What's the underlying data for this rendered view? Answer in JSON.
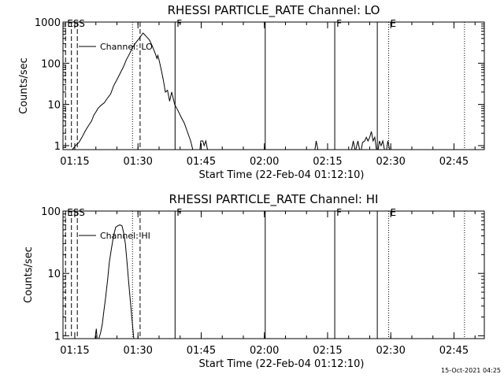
{
  "footer": {
    "timestamp": "15-Oct-2021 04:25"
  },
  "chart_data": [
    {
      "type": "line",
      "title": "RHESSI PARTICLE_RATE Channel: LO",
      "xlabel": "Start Time (22-Feb-04 01:12:10)",
      "ylabel": "Counts/sec",
      "yscale": "log",
      "xunit": "minutes since 01:12:10",
      "xlim": [
        0,
        100
      ],
      "ylim": [
        0.8,
        1000
      ],
      "x_ticks": [
        {
          "label": "01:15",
          "value": 2.8
        },
        {
          "label": "01:30",
          "value": 17.8
        },
        {
          "label": "01:45",
          "value": 32.8
        },
        {
          "label": "02:00",
          "value": 47.8
        },
        {
          "label": "02:15",
          "value": 62.8
        },
        {
          "label": "02:30",
          "value": 77.8
        },
        {
          "label": "02:45",
          "value": 92.8
        }
      ],
      "y_ticks": [
        {
          "label": "1",
          "value": 1
        },
        {
          "label": "10",
          "value": 10
        },
        {
          "label": "100",
          "value": 100
        },
        {
          "label": "1000",
          "value": 1000
        }
      ],
      "legend": {
        "label": "Channel: LO",
        "placement": "top-left"
      },
      "series": [
        {
          "name": "Channel: LO",
          "segments": [
            [
              [
                2.2,
                0.8
              ],
              [
                3,
                1
              ],
              [
                3.8,
                1.2
              ],
              [
                4.5,
                1.6
              ],
              [
                5.3,
                2.3
              ],
              [
                6,
                3
              ],
              [
                6.8,
                4
              ],
              [
                7.3,
                5.5
              ],
              [
                7.8,
                6.5
              ],
              [
                8.3,
                8
              ],
              [
                9,
                9.5
              ],
              [
                9.8,
                11
              ],
              [
                10.5,
                14
              ],
              [
                11.3,
                18
              ],
              [
                12,
                28
              ],
              [
                12.8,
                40
              ],
              [
                13.5,
                55
              ],
              [
                14.3,
                80
              ],
              [
                15,
                120
              ],
              [
                15.8,
                170
              ],
              [
                16.5,
                240
              ],
              [
                17.3,
                320
              ],
              [
                18,
                390
              ],
              [
                18.5,
                460
              ],
              [
                19,
                540
              ],
              [
                19.5,
                480
              ],
              [
                20,
                420
              ],
              [
                20.5,
                370
              ],
              [
                21,
                290
              ],
              [
                21.5,
                220
              ],
              [
                22,
                160
              ],
              [
                22.3,
                130
              ],
              [
                22.5,
                155
              ],
              [
                22.8,
                120
              ],
              [
                23.3,
                70
              ],
              [
                23.8,
                40
              ],
              [
                24.3,
                20
              ],
              [
                24.8,
                22
              ],
              [
                25.3,
                12
              ],
              [
                25.8,
                20
              ],
              [
                26.5,
                10
              ],
              [
                27.3,
                7
              ],
              [
                28,
                5
              ],
              [
                28.8,
                3.5
              ],
              [
                29.5,
                2.2
              ],
              [
                30.3,
                1.3
              ],
              [
                30.8,
                0.8
              ]
            ],
            [
              [
                32.5,
                0.8
              ],
              [
                32.7,
                1.3
              ],
              [
                33.2,
                1.3
              ],
              [
                33.5,
                1
              ],
              [
                33.9,
                1.3
              ],
              [
                34.3,
                0.8
              ]
            ],
            [
              [
                59.8,
                0.8
              ],
              [
                60.1,
                1.3
              ],
              [
                60.5,
                0.8
              ]
            ],
            [
              [
                68.5,
                0.8
              ],
              [
                68.9,
                1.3
              ],
              [
                69.3,
                0.8
              ]
            ],
            [
              [
                69.5,
                0.8
              ],
              [
                70,
                1.3
              ],
              [
                70.4,
                0.8
              ]
            ],
            [
              [
                70.8,
                0.8
              ],
              [
                71.1,
                1.2
              ],
              [
                71.6,
                1.3
              ],
              [
                72,
                1.6
              ],
              [
                72.4,
                1.3
              ],
              [
                72.8,
                1.6
              ],
              [
                73.2,
                2.2
              ],
              [
                73.6,
                1.3
              ],
              [
                74,
                1.6
              ],
              [
                74.4,
                0.8
              ]
            ],
            [
              [
                74.8,
                0.8
              ],
              [
                75.1,
                1.3
              ],
              [
                75.5,
                1
              ],
              [
                75.9,
                1.3
              ],
              [
                76.3,
                0.8
              ]
            ],
            [
              [
                76.8,
                0.8
              ],
              [
                77.1,
                1.3
              ],
              [
                77.5,
                0.8
              ]
            ]
          ]
        }
      ],
      "event_markers": [
        {
          "label": "E",
          "value": 0.6,
          "style": "dashed"
        },
        {
          "label": "S",
          "value": 2.0,
          "style": "dashed"
        },
        {
          "label": "S",
          "value": 3.4,
          "style": "dashed"
        },
        {
          "label": "",
          "value": 16.5,
          "style": "dotted"
        },
        {
          "label": "",
          "value": 18.3,
          "style": "dashed"
        },
        {
          "label": "F",
          "value": 26.6,
          "style": "solid"
        },
        {
          "label": "",
          "value": 48.0,
          "style": "solid"
        },
        {
          "label": "F",
          "value": 64.5,
          "style": "solid"
        },
        {
          "label": "",
          "value": 74.6,
          "style": "solid"
        },
        {
          "label": "E",
          "value": 77.3,
          "style": "dotted"
        },
        {
          "label": "",
          "value": 95.3,
          "style": "dotted"
        }
      ]
    },
    {
      "type": "line",
      "title": "RHESSI PARTICLE_RATE Channel: HI",
      "xlabel": "Start Time (22-Feb-04 01:12:10)",
      "ylabel": "Counts/sec",
      "yscale": "log",
      "xunit": "minutes since 01:12:10",
      "xlim": [
        0,
        100
      ],
      "ylim": [
        0.9,
        100
      ],
      "x_ticks": [
        {
          "label": "01:15",
          "value": 2.8
        },
        {
          "label": "01:30",
          "value": 17.8
        },
        {
          "label": "01:45",
          "value": 32.8
        },
        {
          "label": "02:00",
          "value": 47.8
        },
        {
          "label": "02:15",
          "value": 62.8
        },
        {
          "label": "02:30",
          "value": 77.8
        },
        {
          "label": "02:45",
          "value": 92.8
        }
      ],
      "y_ticks": [
        {
          "label": "1",
          "value": 1
        },
        {
          "label": "10",
          "value": 10
        },
        {
          "label": "100",
          "value": 100
        }
      ],
      "legend": {
        "label": "Channel: HI",
        "placement": "top-left"
      },
      "series": [
        {
          "name": "Channel: HI",
          "segments": [
            [
              [
                7.6,
                0.9
              ],
              [
                7.9,
                1.3
              ],
              [
                8.1,
                0.9
              ]
            ],
            [
              [
                8.5,
                0.9
              ],
              [
                8.9,
                1.1
              ],
              [
                9.3,
                1.5
              ],
              [
                9.7,
                2.5
              ],
              [
                10.1,
                4
              ],
              [
                10.6,
                8
              ],
              [
                11,
                15
              ],
              [
                11.5,
                25
              ],
              [
                12,
                40
              ],
              [
                12.5,
                55
              ],
              [
                13,
                58
              ],
              [
                13.5,
                60
              ],
              [
                14,
                58
              ],
              [
                14.4,
                45
              ],
              [
                14.8,
                30
              ],
              [
                15.2,
                15
              ],
              [
                15.6,
                7
              ],
              [
                16,
                3.5
              ],
              [
                16.4,
                1.8
              ],
              [
                16.8,
                0.9
              ]
            ]
          ]
        }
      ],
      "event_markers": [
        {
          "label": "E",
          "value": 0.6,
          "style": "dashed"
        },
        {
          "label": "S",
          "value": 2.0,
          "style": "dashed"
        },
        {
          "label": "S",
          "value": 3.4,
          "style": "dashed"
        },
        {
          "label": "",
          "value": 16.5,
          "style": "dotted"
        },
        {
          "label": "",
          "value": 18.3,
          "style": "dashed"
        },
        {
          "label": "F",
          "value": 26.6,
          "style": "solid"
        },
        {
          "label": "",
          "value": 48.0,
          "style": "solid"
        },
        {
          "label": "F",
          "value": 64.5,
          "style": "solid"
        },
        {
          "label": "",
          "value": 74.6,
          "style": "solid"
        },
        {
          "label": "E",
          "value": 77.3,
          "style": "dotted"
        },
        {
          "label": "",
          "value": 95.3,
          "style": "dotted"
        }
      ]
    }
  ]
}
